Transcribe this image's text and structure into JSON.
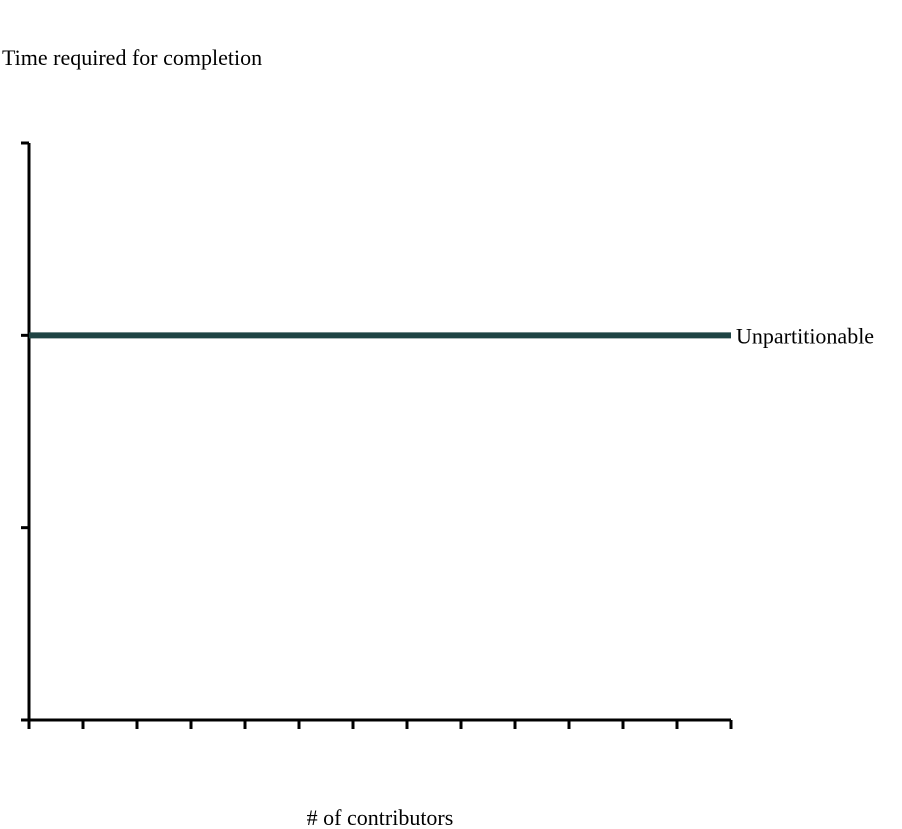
{
  "chart_data": {
    "type": "line",
    "ylabel": "Time required for completion",
    "xlabel": "# of contributors",
    "xlim": [
      0,
      13
    ],
    "ylim": [
      0,
      3
    ],
    "x_tick_count": 14,
    "y_tick_count": 4,
    "show_tick_labels": false,
    "grid": false,
    "legend": "none",
    "series": [
      {
        "name": "Unpartitionable",
        "color": "#1f4444",
        "x": [
          0,
          13
        ],
        "y": [
          2,
          2
        ]
      }
    ]
  }
}
